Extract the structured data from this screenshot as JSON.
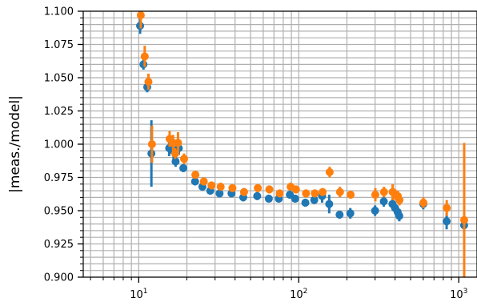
{
  "chart_data": {
    "type": "scatter",
    "title": "",
    "xlabel": "",
    "ylabel": "|meas./model|",
    "xscale": "log",
    "xlim": [
      4.5,
      1300
    ],
    "ylim": [
      0.9,
      1.1
    ],
    "grid": true,
    "x_ticks": [
      {
        "value": 10,
        "label": "10",
        "sup": "1"
      },
      {
        "value": 100,
        "label": "10",
        "sup": "2"
      },
      {
        "value": 1000,
        "label": "10",
        "sup": "3"
      }
    ],
    "y_ticks": [
      "0.900",
      "0.925",
      "0.950",
      "0.975",
      "1.000",
      "1.025",
      "1.050",
      "1.075",
      "1.100"
    ],
    "series": [
      {
        "color": "#1f77b4",
        "points": [
          {
            "x": 10.2,
            "y": 1.089,
            "err": 0.006
          },
          {
            "x": 10.7,
            "y": 1.06,
            "err": 0.004
          },
          {
            "x": 11.3,
            "y": 1.043,
            "err": 0.004
          },
          {
            "x": 12.0,
            "y": 0.993,
            "err": 0.025
          },
          {
            "x": 15.5,
            "y": 0.997,
            "err": 0.006
          },
          {
            "x": 16.5,
            "y": 0.995,
            "err": 0.006
          },
          {
            "x": 17.0,
            "y": 0.987,
            "err": 0.004
          },
          {
            "x": 17.8,
            "y": 0.997,
            "err": 0.005
          },
          {
            "x": 19.0,
            "y": 0.982,
            "err": 0.003
          },
          {
            "x": 22.5,
            "y": 0.972,
            "err": 0.003
          },
          {
            "x": 25.0,
            "y": 0.968,
            "err": 0.003
          },
          {
            "x": 28.0,
            "y": 0.965,
            "err": 0.003
          },
          {
            "x": 32.0,
            "y": 0.963,
            "err": 0.003
          },
          {
            "x": 38.0,
            "y": 0.963,
            "err": 0.003
          },
          {
            "x": 45.0,
            "y": 0.96,
            "err": 0.003
          },
          {
            "x": 55.0,
            "y": 0.961,
            "err": 0.003
          },
          {
            "x": 65.0,
            "y": 0.959,
            "err": 0.003
          },
          {
            "x": 75.0,
            "y": 0.959,
            "err": 0.003
          },
          {
            "x": 88.0,
            "y": 0.962,
            "err": 0.003
          },
          {
            "x": 95.0,
            "y": 0.959,
            "err": 0.003
          },
          {
            "x": 110.0,
            "y": 0.956,
            "err": 0.003
          },
          {
            "x": 125.0,
            "y": 0.958,
            "err": 0.003
          },
          {
            "x": 140.0,
            "y": 0.961,
            "err": 0.005
          },
          {
            "x": 155.0,
            "y": 0.955,
            "err": 0.007
          },
          {
            "x": 180.0,
            "y": 0.947,
            "err": 0.003
          },
          {
            "x": 210.0,
            "y": 0.948,
            "err": 0.004
          },
          {
            "x": 300.0,
            "y": 0.95,
            "err": 0.004
          },
          {
            "x": 340.0,
            "y": 0.957,
            "err": 0.004
          },
          {
            "x": 385.0,
            "y": 0.955,
            "err": 0.004
          },
          {
            "x": 400.0,
            "y": 0.952,
            "err": 0.004
          },
          {
            "x": 415.0,
            "y": 0.949,
            "err": 0.004
          },
          {
            "x": 425.0,
            "y": 0.946,
            "err": 0.004
          },
          {
            "x": 600.0,
            "y": 0.955,
            "err": 0.004
          },
          {
            "x": 840.0,
            "y": 0.942,
            "err": 0.006
          },
          {
            "x": 1080.0,
            "y": 0.939,
            "err": 0.006
          }
        ]
      },
      {
        "color": "#ff7f0e",
        "points": [
          {
            "x": 10.3,
            "y": 1.097,
            "err": 0.01
          },
          {
            "x": 10.9,
            "y": 1.066,
            "err": 0.008
          },
          {
            "x": 11.5,
            "y": 1.047,
            "err": 0.006
          },
          {
            "x": 12.1,
            "y": 1.0,
            "err": 0.014
          },
          {
            "x": 15.6,
            "y": 1.004,
            "err": 0.006
          },
          {
            "x": 16.4,
            "y": 1.001,
            "err": 0.006
          },
          {
            "x": 16.9,
            "y": 0.993,
            "err": 0.004
          },
          {
            "x": 17.6,
            "y": 1.001,
            "err": 0.008
          },
          {
            "x": 19.2,
            "y": 0.989,
            "err": 0.004
          },
          {
            "x": 22.6,
            "y": 0.977,
            "err": 0.003
          },
          {
            "x": 25.5,
            "y": 0.972,
            "err": 0.003
          },
          {
            "x": 28.5,
            "y": 0.969,
            "err": 0.003
          },
          {
            "x": 32.5,
            "y": 0.968,
            "err": 0.003
          },
          {
            "x": 38.5,
            "y": 0.967,
            "err": 0.003
          },
          {
            "x": 45.5,
            "y": 0.964,
            "err": 0.003
          },
          {
            "x": 55.5,
            "y": 0.967,
            "err": 0.003
          },
          {
            "x": 65.5,
            "y": 0.966,
            "err": 0.003
          },
          {
            "x": 76.0,
            "y": 0.963,
            "err": 0.003
          },
          {
            "x": 89.0,
            "y": 0.968,
            "err": 0.003
          },
          {
            "x": 96.0,
            "y": 0.966,
            "err": 0.003
          },
          {
            "x": 111.0,
            "y": 0.963,
            "err": 0.003
          },
          {
            "x": 126.0,
            "y": 0.963,
            "err": 0.003
          },
          {
            "x": 141.0,
            "y": 0.964,
            "err": 0.003
          },
          {
            "x": 156.0,
            "y": 0.979,
            "err": 0.004
          },
          {
            "x": 181.0,
            "y": 0.964,
            "err": 0.004
          },
          {
            "x": 211.0,
            "y": 0.962,
            "err": 0.003
          },
          {
            "x": 301.0,
            "y": 0.962,
            "err": 0.005
          },
          {
            "x": 341.0,
            "y": 0.964,
            "err": 0.004
          },
          {
            "x": 386.0,
            "y": 0.964,
            "err": 0.006
          },
          {
            "x": 401.0,
            "y": 0.962,
            "err": 0.004
          },
          {
            "x": 416.0,
            "y": 0.961,
            "err": 0.004
          },
          {
            "x": 426.0,
            "y": 0.958,
            "err": 0.004
          },
          {
            "x": 601.0,
            "y": 0.956,
            "err": 0.004
          },
          {
            "x": 841.0,
            "y": 0.952,
            "err": 0.006
          },
          {
            "x": 1081.0,
            "y": 0.943,
            "err": 0.058
          }
        ]
      }
    ]
  }
}
